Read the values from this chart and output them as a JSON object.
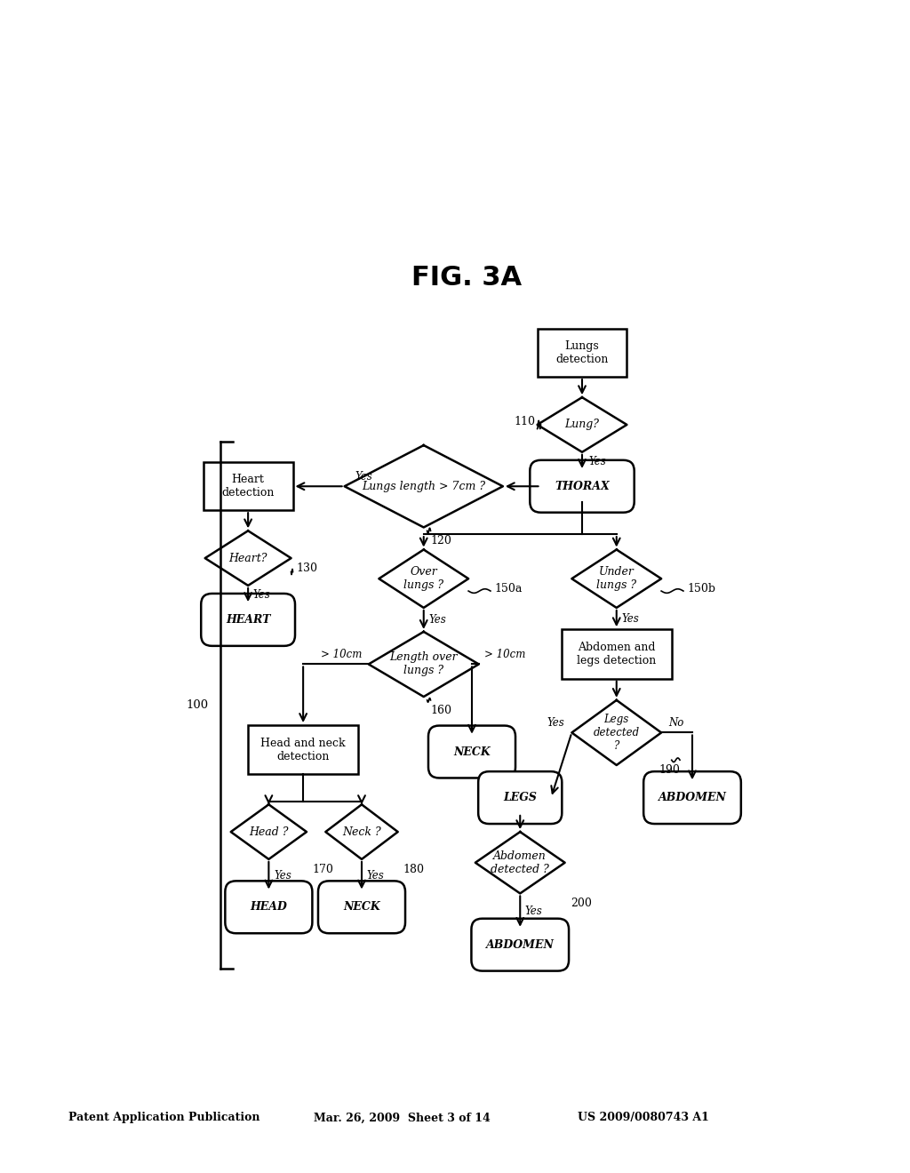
{
  "header_left": "Patent Application Publication",
  "header_mid": "Mar. 26, 2009  Sheet 3 of 14",
  "header_right": "US 2009/0080743 A1",
  "fig_title": "FIG. 3A",
  "bg_color": "#ffffff"
}
